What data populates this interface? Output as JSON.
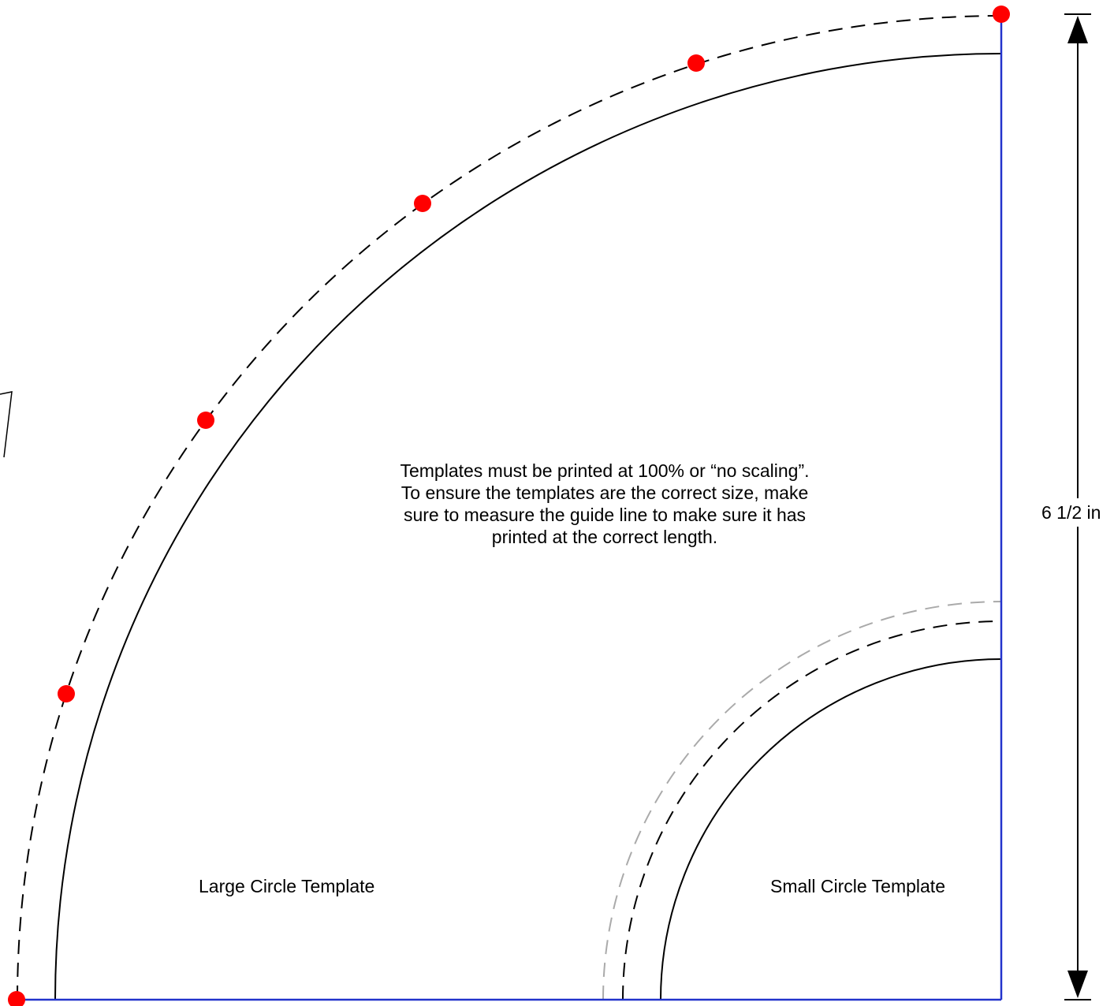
{
  "note": {
    "lines": [
      "Templates must be printed at 100% or “no scaling”.",
      "To ensure the templates are the correct size, make",
      "sure to measure the guide line to make sure it has",
      "printed at the correct length."
    ]
  },
  "labels": {
    "large": "Large Circle Template",
    "small": "Small Circle Template",
    "dimension": "6 1/2 in"
  },
  "colors": {
    "guide_line": "#2233cc",
    "marker": "#ff0000",
    "outline": "#000000",
    "grey_dashed": "#aaaaaa"
  }
}
